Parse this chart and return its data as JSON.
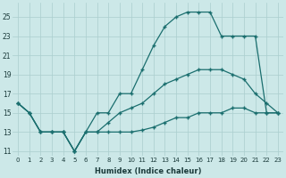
{
  "xlabel": "Humidex (Indice chaleur)",
  "ylabel": "",
  "bg_color": "#cce8e8",
  "grid_color": "#aacece",
  "line_color": "#1a6e6e",
  "xlim": [
    -0.5,
    23.5
  ],
  "ylim": [
    10.5,
    26.5
  ],
  "yticks": [
    11,
    13,
    15,
    17,
    19,
    21,
    23,
    25
  ],
  "xticks": [
    0,
    1,
    2,
    3,
    4,
    5,
    6,
    7,
    8,
    9,
    10,
    11,
    12,
    13,
    14,
    15,
    16,
    17,
    18,
    19,
    20,
    21,
    22,
    23
  ],
  "series": [
    {
      "x": [
        0,
        1,
        2,
        3,
        4,
        5,
        7,
        8,
        9,
        10,
        11,
        12,
        13,
        14,
        15,
        16,
        17,
        18,
        19,
        20,
        21,
        22,
        23
      ],
      "y": [
        16,
        15,
        13,
        13,
        13,
        11,
        15,
        15,
        17,
        17,
        19.5,
        22,
        24,
        25,
        25.5,
        25.5,
        25.5,
        23,
        23,
        23,
        23,
        15,
        15
      ]
    },
    {
      "x": [
        0,
        1,
        2,
        3,
        4,
        5,
        6,
        7,
        8,
        9,
        10,
        11,
        12,
        13,
        14,
        15,
        16,
        17,
        18,
        19,
        20,
        21,
        22,
        23
      ],
      "y": [
        16,
        15,
        13,
        13,
        13,
        11,
        13,
        13,
        14,
        15,
        15.5,
        16,
        17,
        18,
        18.5,
        19,
        19.5,
        19.5,
        19.5,
        19,
        18.5,
        17,
        16,
        15
      ]
    },
    {
      "x": [
        0,
        1,
        2,
        3,
        4,
        5,
        6,
        7,
        8,
        9,
        10,
        11,
        12,
        13,
        14,
        15,
        16,
        17,
        18,
        19,
        20,
        21,
        22,
        23
      ],
      "y": [
        16,
        15,
        13,
        13,
        13,
        11,
        13,
        13,
        13,
        13,
        13,
        13.2,
        13.5,
        14,
        14.5,
        14.5,
        15,
        15,
        15,
        15.5,
        15.5,
        15,
        15,
        15
      ]
    }
  ]
}
